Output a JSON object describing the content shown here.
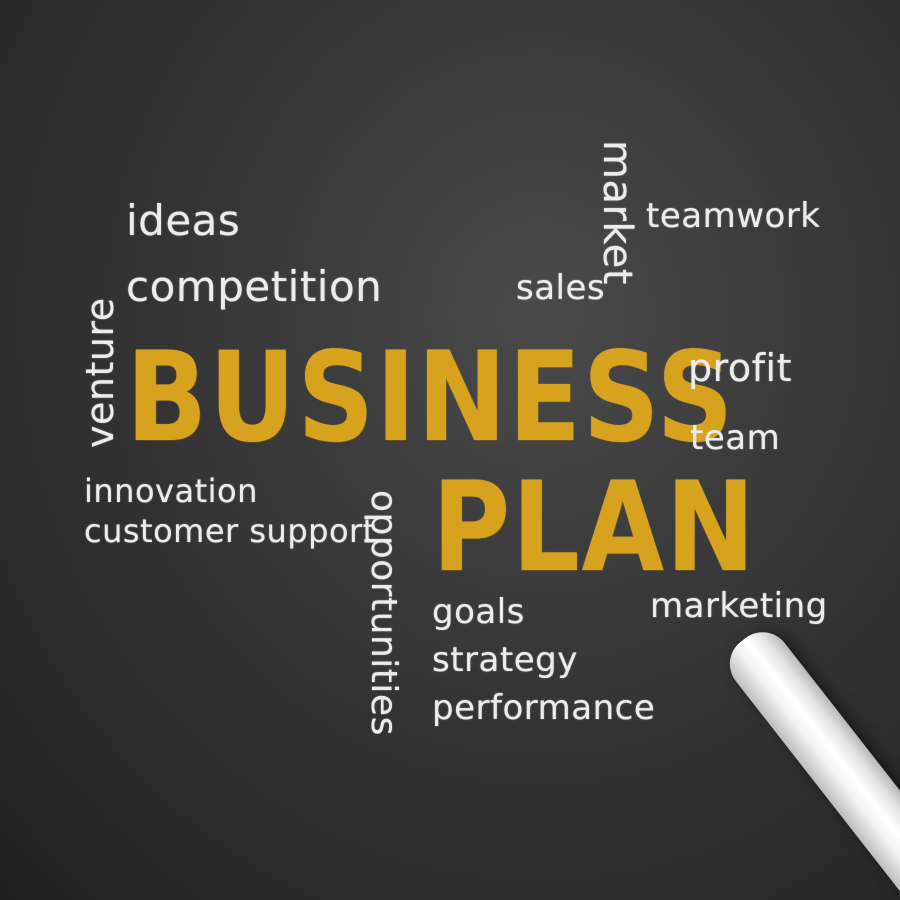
{
  "title": {
    "line1": "BUSINESS",
    "line2": "PLAN"
  },
  "words": {
    "ideas": "ideas",
    "competition": "competition",
    "venture": "venture",
    "sales": "sales",
    "market": "market",
    "teamwork": "teamwork",
    "profit": "profit",
    "team": "team",
    "innovation": "innovation",
    "customer_support": "customer support",
    "opportunities": "opportunities",
    "goals": "goals",
    "strategy": "strategy",
    "performance": "performance",
    "marketing": "marketing"
  },
  "colors": {
    "chalkboard": "#2e2e2e",
    "chalk_white": "#ececec",
    "chalk_yellow": "#d7a21d"
  }
}
